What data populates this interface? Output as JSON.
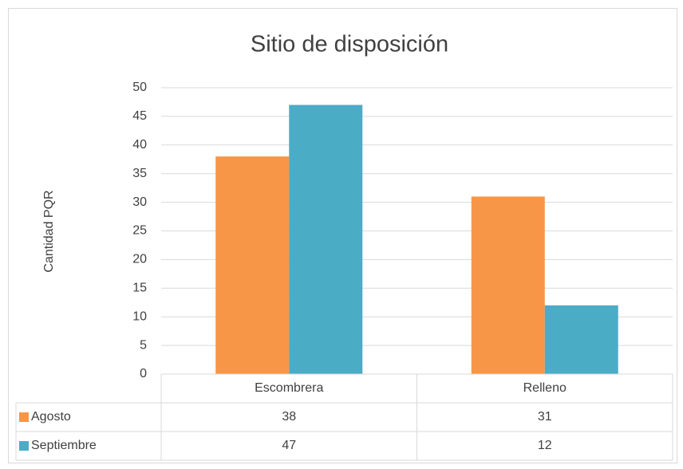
{
  "chart_data": {
    "type": "bar",
    "title": "Sitio de disposición",
    "y_axis_label": "Cantidad PQR",
    "categories": [
      "Escombrera",
      "Relleno"
    ],
    "series": [
      {
        "name": "Agosto",
        "color": "#f79646",
        "values": [
          38,
          31
        ]
      },
      {
        "name": "Septiembre",
        "color": "#4bacc6",
        "values": [
          47,
          12
        ]
      }
    ],
    "ylim": [
      0,
      50
    ],
    "yticks": [
      0,
      5,
      10,
      15,
      20,
      25,
      30,
      35,
      40,
      45,
      50
    ],
    "grid": true,
    "data_table": true
  }
}
